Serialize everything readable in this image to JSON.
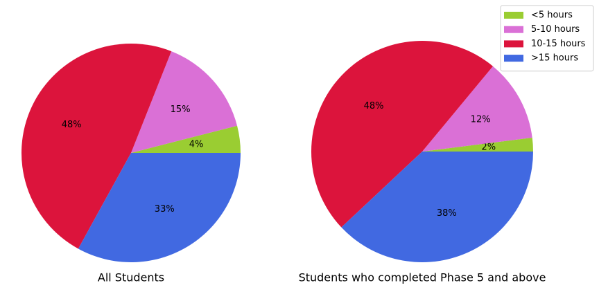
{
  "legend": {
    "labels": [
      "<5 hours",
      "5-10 hours",
      "10-15 hours",
      ">15 hours"
    ],
    "colors": [
      "#9acd32",
      "#da70d6",
      "#dc143c",
      "#4169e1"
    ],
    "loc": "upper right"
  },
  "chart_data": [
    {
      "type": "pie",
      "title": "All Students",
      "values": [
        4,
        15,
        48,
        33
      ],
      "value_labels": [
        "4%",
        "15%",
        "48%",
        "33%"
      ]
    },
    {
      "type": "pie",
      "title": "Students who completed Phase 5 and above",
      "values": [
        2,
        12,
        48,
        38
      ],
      "value_labels": [
        "2%",
        "12%",
        "48%",
        "38%"
      ]
    }
  ]
}
